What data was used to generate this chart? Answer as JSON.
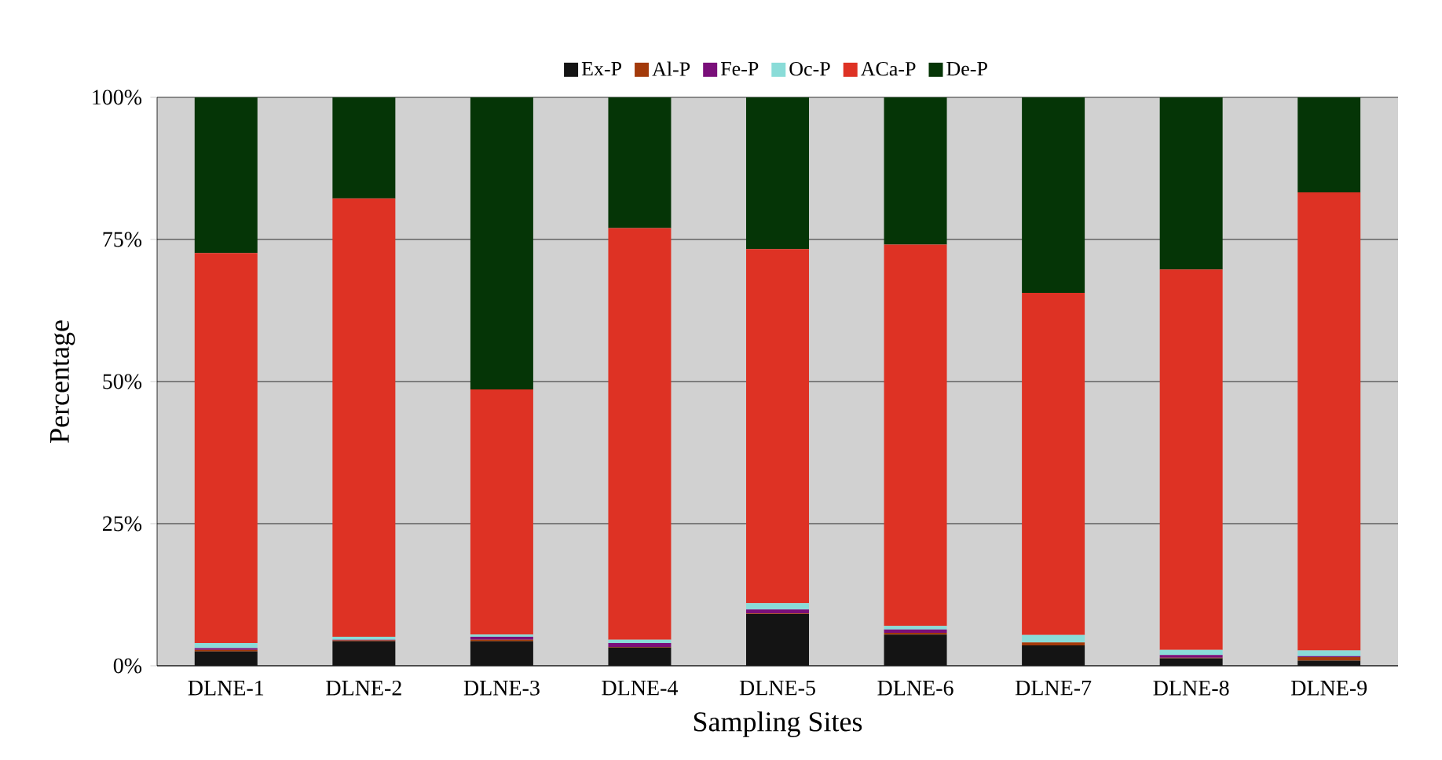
{
  "chart_data": {
    "type": "bar",
    "stacked": true,
    "xlabel": "Sampling Sites",
    "ylabel": "Percentage",
    "categories": [
      "DLNE-1",
      "DLNE-2",
      "DLNE-3",
      "DLNE-4",
      "DLNE-5",
      "DLNE-6",
      "DLNE-7",
      "DLNE-8",
      "DLNE-9"
    ],
    "series": [
      {
        "name": "Ex-P",
        "color": "#141414",
        "values": [
          2.5,
          4.3,
          4.3,
          3.2,
          9.1,
          5.5,
          3.6,
          1.3,
          0.9
        ]
      },
      {
        "name": "Al-P",
        "color": "#a33a0a",
        "values": [
          0.3,
          0.2,
          0.3,
          0.1,
          0.1,
          0.3,
          0.5,
          0.1,
          0.6
        ]
      },
      {
        "name": "Fe-P",
        "color": "#7a0f7a",
        "values": [
          0.3,
          0.1,
          0.5,
          0.7,
          0.7,
          0.6,
          0.0,
          0.5,
          0.2
        ]
      },
      {
        "name": "Oc-P",
        "color": "#8adcd8",
        "values": [
          0.9,
          0.5,
          0.4,
          0.6,
          1.1,
          0.6,
          1.3,
          0.9,
          1.0
        ]
      },
      {
        "name": "ACa-P",
        "color": "#de3224",
        "values": [
          68.6,
          77.1,
          43.1,
          72.4,
          62.3,
          67.1,
          60.2,
          66.9,
          80.6
        ]
      },
      {
        "name": "De-P",
        "color": "#053506",
        "values": [
          27.4,
          17.8,
          51.4,
          23.0,
          26.7,
          25.9,
          34.4,
          30.3,
          16.7
        ]
      }
    ],
    "ylim": [
      0,
      100
    ],
    "yticks": [
      {
        "value": 0,
        "label": "0%"
      },
      {
        "value": 25,
        "label": "25%"
      },
      {
        "value": 50,
        "label": "50%"
      },
      {
        "value": 75,
        "label": "75%"
      },
      {
        "value": 100,
        "label": "100%"
      }
    ],
    "grid": "y",
    "legend": "top"
  }
}
